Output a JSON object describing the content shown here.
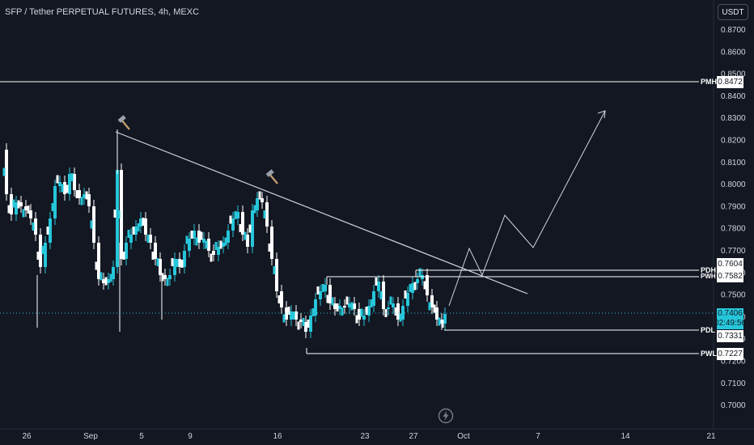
{
  "header": {
    "symbol_line": "SFP / Tether PERPETUAL FUTURES, 4h, MEXC"
  },
  "currency_button": "USDT",
  "price_axis": {
    "ticks": [
      "0.8700",
      "0.8600",
      "0.8500",
      "0.8400",
      "0.8300",
      "0.8200",
      "0.8100",
      "0.8000",
      "0.7900",
      "0.7800",
      "0.7700",
      "0.7600",
      "0.7500",
      "0.7400",
      "0.7300",
      "0.7200",
      "0.7100",
      "0.7000"
    ]
  },
  "time_axis": {
    "ticks": [
      "26",
      "Sep",
      "5",
      "9",
      "16",
      "23",
      "27",
      "Oct",
      "7",
      "14",
      "21"
    ]
  },
  "levels": [
    {
      "tag": "PMH",
      "price": "0.8472"
    },
    {
      "tag": "PDH",
      "price": "0.7604"
    },
    {
      "tag": "PWH",
      "price": "0.7582"
    },
    {
      "tag": "PDL",
      "price": "0.7331"
    },
    {
      "tag": "PWL",
      "price": "0.7227"
    }
  ],
  "current_price": {
    "price": "0.7406",
    "countdown": "02:49:56"
  },
  "icons": {
    "marker": "hammer-icon",
    "replay": "lightning-icon"
  },
  "colors": {
    "background": "#131722",
    "up": "#26c6da",
    "down": "#ffffff",
    "lines": "#ffffff",
    "current": "#26c6da"
  }
}
